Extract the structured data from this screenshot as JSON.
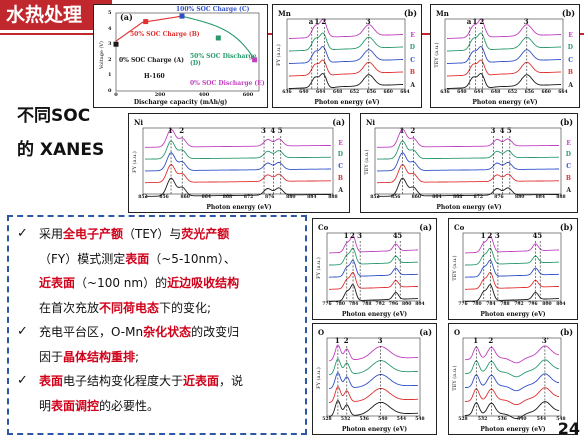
{
  "header": {
    "title": "水热处理"
  },
  "headings": {
    "line1": "不同SOC",
    "line2": "的 XANES"
  },
  "charge_panel": {
    "tag": "(a)",
    "ylabel": "Voltage (V)",
    "xlabel": "Discharge capacity (mAh/g)",
    "sample": "H-160",
    "labels": {
      "c": "100% SOC Charge (C)",
      "b": "50% SOC Charge (B)",
      "a": "0% SOC Charge (A)",
      "d": "50% SOC Discharge (D)",
      "e": "0% SOC Discharge (E)"
    },
    "yticks": [
      "5",
      "4",
      "3",
      "2",
      "1",
      "0"
    ],
    "xticks": [
      "0",
      "200",
      "400",
      "600"
    ],
    "colors": {
      "a": "#1a1a1a",
      "b": "#e03030",
      "c": "#2f50c8",
      "d": "#2a9a6c",
      "e": "#c040c0"
    }
  },
  "mn_panels": [
    {
      "elem": "Mn",
      "tag": "(b)",
      "ylabel": "FY (a.u.)",
      "xlabel": "Photon energy (eV)",
      "xticks": [
        "636",
        "640",
        "644",
        "648",
        "652",
        "656",
        "660",
        "664"
      ],
      "peaks": [
        "a",
        "1",
        "2",
        "3"
      ],
      "series": [
        "E",
        "D",
        "C",
        "B",
        "A"
      ]
    },
    {
      "elem": "Mn",
      "tag": "(b)",
      "ylabel": "TEY (a.u.)",
      "xlabel": "Photon energy (eV)",
      "xticks": [
        "636",
        "640",
        "644",
        "648",
        "652",
        "656",
        "660",
        "664"
      ],
      "peaks": [
        "a",
        "1",
        "2",
        "3"
      ],
      "series": [
        "E",
        "D",
        "C",
        "B",
        "A"
      ]
    }
  ],
  "ni_panels": [
    {
      "elem": "Ni",
      "tag": "(a)",
      "ylabel": "FY (a.u.)",
      "xlabel": "Photon energy (eV)",
      "xticks": [
        "852",
        "856",
        "860",
        "864",
        "868",
        "872",
        "876",
        "880",
        "884",
        "888"
      ],
      "peaks": [
        "1",
        "2",
        "3",
        "4",
        "5"
      ],
      "series": [
        "E",
        "D",
        "C",
        "B",
        "A"
      ]
    },
    {
      "elem": "Ni",
      "tag": "(b)",
      "ylabel": "TEY (a.u.)",
      "xlabel": "Photon energy (eV)",
      "xticks": [
        "852",
        "856",
        "860",
        "864",
        "868",
        "872",
        "876",
        "880",
        "884",
        "888"
      ],
      "peaks": [
        "1",
        "2",
        "3",
        "4",
        "5"
      ],
      "series": [
        "E",
        "D",
        "C",
        "B",
        "A"
      ]
    }
  ],
  "co_panels": [
    {
      "elem": "Co",
      "tag": "(a)",
      "ylabel": "FY (a.u.)",
      "xlabel": "Photon energy (eV)",
      "xticks": [
        "776",
        "780",
        "784",
        "788",
        "792",
        "796",
        "800",
        "804"
      ],
      "peaks": [
        "1",
        "2",
        "3",
        "4",
        "5"
      ]
    },
    {
      "elem": "Co",
      "tag": "(b)",
      "ylabel": "TEY (a.u.)",
      "xlabel": "Photon energy (eV)",
      "xticks": [
        "776",
        "780",
        "784",
        "788",
        "792",
        "796",
        "800",
        "804"
      ],
      "peaks": [
        "1",
        "2",
        "3",
        "4",
        "5"
      ]
    }
  ],
  "o_panels": [
    {
      "elem": "O",
      "tag": "(a)",
      "ylabel": "FY (a.u.)",
      "xlabel": "Photon energy (eV)",
      "xticks": [
        "528",
        "532",
        "536",
        "540",
        "544",
        "548"
      ],
      "peaks": [
        "1",
        "2",
        "3"
      ]
    },
    {
      "elem": "O",
      "tag": "(b)",
      "ylabel": "TEY (a.u.)",
      "xlabel": "Photon energy (eV)",
      "xticks": [
        "528",
        "532",
        "536",
        "540",
        "544",
        "548"
      ],
      "peaks": [
        "1",
        "2",
        "3'"
      ]
    }
  ],
  "series_colors": [
    "#c040c0",
    "#2a9a6c",
    "#2f50c8",
    "#e03030",
    "#1a1a1a"
  ],
  "bullets": [
    {
      "mark": "✓",
      "lines": [
        [
          {
            "t": "采用"
          },
          {
            "t": "全电子产额",
            "r": true
          },
          {
            "t": "（TEY）与"
          },
          {
            "t": "荧光产额",
            "r": true
          }
        ],
        [
          {
            "t": "（FY）模式测定"
          },
          {
            "t": "表面",
            "r": true
          },
          {
            "t": "（~5-10nm）、"
          }
        ],
        [
          {
            "t": "近表面",
            "r": true
          },
          {
            "t": "（~100 nm）的"
          },
          {
            "t": "近边吸收结构",
            "r": true
          }
        ],
        [
          {
            "t": "在首次充放"
          },
          {
            "t": "不同荷电态",
            "r": true
          },
          {
            "t": "下的变化;"
          }
        ]
      ]
    },
    {
      "mark": "✓",
      "lines": [
        [
          {
            "t": "充电平台区，O-Mn"
          },
          {
            "t": "杂化状态",
            "r": true
          },
          {
            "t": "的改变归"
          }
        ],
        [
          {
            "t": "因于"
          },
          {
            "t": "晶体结构重排",
            "r": true
          },
          {
            "t": ";"
          }
        ]
      ]
    },
    {
      "mark": "✓",
      "lines": [
        [
          {
            "t": "表面",
            "r": true
          },
          {
            "t": "电子结构变化程度大于"
          },
          {
            "t": "近表面",
            "r": true
          },
          {
            "t": "，说"
          }
        ],
        [
          {
            "t": "明"
          },
          {
            "t": "表面调控",
            "r": true
          },
          {
            "t": "的必要性。"
          }
        ]
      ]
    }
  ],
  "page_number": "24"
}
